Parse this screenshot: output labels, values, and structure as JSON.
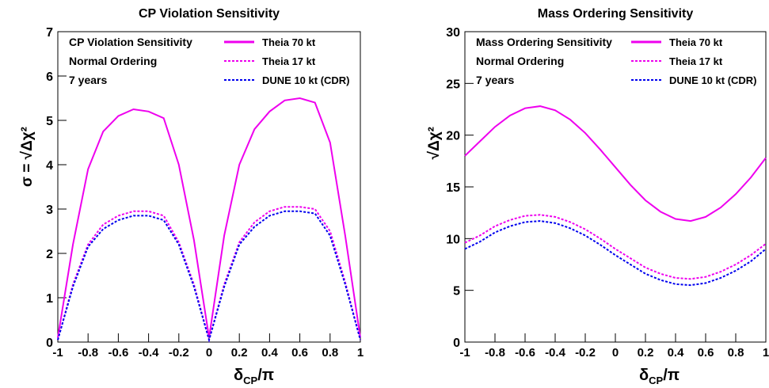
{
  "chart_data": [
    {
      "type": "line",
      "title": "CP Violation Sensitivity",
      "x_label": [
        "δ",
        "CP",
        "/π"
      ],
      "y_label": "σ = √Δχ²",
      "annotations": [
        "CP Violation Sensitivity",
        "Normal Ordering",
        "7 years"
      ],
      "x": [
        -1,
        -0.9,
        -0.8,
        -0.7,
        -0.6,
        -0.5,
        -0.4,
        -0.3,
        -0.2,
        -0.1,
        0,
        0.1,
        0.2,
        0.3,
        0.4,
        0.5,
        0.6,
        0.7,
        0.8,
        0.9,
        1
      ],
      "xlim": [
        -1,
        1
      ],
      "xticks": [
        -1,
        -0.8,
        -0.6,
        -0.4,
        -0.2,
        0,
        0.2,
        0.4,
        0.6,
        0.8,
        1
      ],
      "ylim": [
        0,
        7
      ],
      "yticks": [
        0,
        1,
        2,
        3,
        4,
        5,
        6,
        7
      ],
      "series": [
        {
          "name": "Theia 70 kt",
          "color": "#ee00ee",
          "style": "solid",
          "values": [
            0.1,
            2.2,
            3.9,
            4.75,
            5.1,
            5.25,
            5.2,
            5.05,
            4.0,
            2.3,
            0.1,
            2.4,
            4.0,
            4.8,
            5.2,
            5.45,
            5.5,
            5.4,
            4.5,
            2.4,
            0.1
          ]
        },
        {
          "name": "Theia 17 kt",
          "color": "#ee00ee",
          "style": "dotted",
          "values": [
            0.05,
            1.3,
            2.2,
            2.65,
            2.85,
            2.95,
            2.95,
            2.85,
            2.25,
            1.3,
            0.05,
            1.3,
            2.25,
            2.7,
            2.95,
            3.05,
            3.05,
            3.0,
            2.5,
            1.35,
            0.05
          ]
        },
        {
          "name": "DUNE 10 kt (CDR)",
          "color": "#0000ee",
          "style": "dotted",
          "values": [
            0.05,
            1.25,
            2.15,
            2.55,
            2.75,
            2.85,
            2.85,
            2.75,
            2.2,
            1.25,
            0.05,
            1.25,
            2.2,
            2.6,
            2.85,
            2.95,
            2.95,
            2.9,
            2.4,
            1.3,
            0.05
          ]
        }
      ]
    },
    {
      "type": "line",
      "title": "Mass Ordering Sensitivity",
      "x_label": [
        "δ",
        "CP",
        "/π"
      ],
      "y_label": "√Δχ²",
      "annotations": [
        "Mass Ordering Sensitivity",
        "Normal Ordering",
        "7 years"
      ],
      "x": [
        -1,
        -0.9,
        -0.8,
        -0.7,
        -0.6,
        -0.5,
        -0.4,
        -0.3,
        -0.2,
        -0.1,
        0,
        0.1,
        0.2,
        0.3,
        0.4,
        0.5,
        0.6,
        0.7,
        0.8,
        0.9,
        1
      ],
      "xlim": [
        -1,
        1
      ],
      "xticks": [
        -1,
        -0.8,
        -0.6,
        -0.4,
        -0.2,
        0,
        0.2,
        0.4,
        0.6,
        0.8,
        1
      ],
      "ylim": [
        0,
        30
      ],
      "yticks": [
        0,
        5,
        10,
        15,
        20,
        25,
        30
      ],
      "series": [
        {
          "name": "Theia 70 kt",
          "color": "#ee00ee",
          "style": "solid",
          "values": [
            18.0,
            19.4,
            20.8,
            21.9,
            22.6,
            22.8,
            22.4,
            21.5,
            20.2,
            18.6,
            16.9,
            15.2,
            13.7,
            12.6,
            11.9,
            11.7,
            12.1,
            13.0,
            14.3,
            15.9,
            17.8
          ]
        },
        {
          "name": "Theia 17 kt",
          "color": "#ee00ee",
          "style": "dotted",
          "values": [
            9.6,
            10.3,
            11.2,
            11.8,
            12.2,
            12.3,
            12.1,
            11.6,
            10.9,
            10.0,
            9.0,
            8.1,
            7.2,
            6.6,
            6.2,
            6.1,
            6.3,
            6.8,
            7.5,
            8.4,
            9.5
          ]
        },
        {
          "name": "DUNE 10 kt (CDR)",
          "color": "#0000ee",
          "style": "dotted",
          "values": [
            9.0,
            9.7,
            10.6,
            11.2,
            11.6,
            11.7,
            11.5,
            11.0,
            10.3,
            9.4,
            8.4,
            7.5,
            6.6,
            6.0,
            5.6,
            5.5,
            5.7,
            6.2,
            6.9,
            7.8,
            9.0
          ]
        }
      ]
    }
  ]
}
